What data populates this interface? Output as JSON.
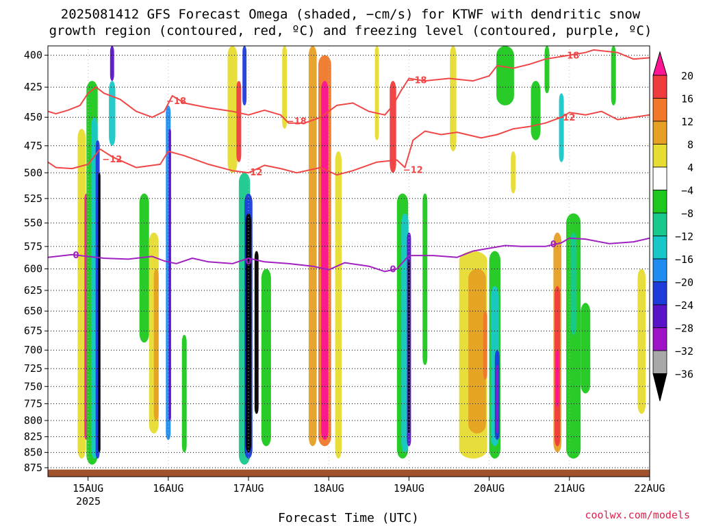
{
  "chart_data": {
    "type": "heatmap",
    "title_lines": [
      "2025081412 GFS Forecast Omega (shaded, −cm/s) for KTWF with dendritic snow",
      "growth region (contoured, red, ºC) and freezing level (contoured, purple, ºC)"
    ],
    "xlabel": "Forecast Time (UTC)",
    "credit": "coolwx.com/models",
    "x_ticks": [
      "15AUG",
      "16AUG",
      "17AUG",
      "18AUG",
      "19AUG",
      "20AUG",
      "21AUG",
      "22AUG"
    ],
    "x_year": "2025",
    "x_range_days": [
      14.5,
      22.0
    ],
    "y_ticks": [
      400,
      425,
      450,
      475,
      500,
      525,
      550,
      575,
      600,
      625,
      650,
      675,
      700,
      725,
      750,
      775,
      800,
      825,
      850,
      875
    ],
    "y_range_hpa": [
      393,
      890
    ],
    "y_scale": "log-pressure",
    "colorbar": {
      "labels": [
        "20",
        "16",
        "12",
        "8",
        "4",
        "−4",
        "−8",
        "−12",
        "−16",
        "−20",
        "−24",
        "−28",
        "−32",
        "−36"
      ],
      "colors": [
        "#ff1493",
        "#f03c3c",
        "#f07828",
        "#e6a024",
        "#e6dc32",
        "#ffffff",
        "#1ec81e",
        "#18c88c",
        "#18c8c8",
        "#1e8cf0",
        "#1e3cdc",
        "#5a14c8",
        "#a014c8",
        "#a8a8a8",
        "#000000"
      ]
    },
    "isotherms": [
      {
        "label": "−18",
        "color": "#f04646",
        "points": [
          [
            14.5,
            445
          ],
          [
            14.6,
            447
          ],
          [
            14.75,
            444
          ],
          [
            14.9,
            440
          ],
          [
            15.0,
            430
          ],
          [
            15.1,
            425
          ],
          [
            15.2,
            430
          ],
          [
            15.4,
            435
          ],
          [
            15.6,
            445
          ],
          [
            15.8,
            450
          ],
          [
            15.95,
            445
          ],
          [
            16.05,
            432
          ],
          [
            16.2,
            438
          ],
          [
            16.5,
            442
          ],
          [
            16.8,
            445
          ],
          [
            17.0,
            448
          ],
          [
            17.2,
            444
          ],
          [
            17.4,
            448
          ],
          [
            17.5,
            455
          ],
          [
            17.7,
            455
          ],
          [
            17.9,
            450
          ],
          [
            18.1,
            440
          ],
          [
            18.3,
            438
          ],
          [
            18.5,
            445
          ],
          [
            18.7,
            448
          ],
          [
            18.8,
            440
          ],
          [
            18.9,
            428
          ],
          [
            19.0,
            418
          ],
          [
            19.2,
            420
          ],
          [
            19.5,
            418
          ],
          [
            19.8,
            420
          ],
          [
            20.0,
            416
          ],
          [
            20.1,
            408
          ],
          [
            20.3,
            410
          ],
          [
            20.5,
            407
          ],
          [
            20.7,
            403
          ],
          [
            21.0,
            400
          ],
          [
            21.2,
            398
          ],
          [
            21.3,
            396
          ],
          [
            21.6,
            398
          ],
          [
            21.8,
            403
          ],
          [
            22.0,
            402
          ]
        ]
      },
      {
        "label": "−12",
        "color": "#f04646",
        "points": [
          [
            14.5,
            490
          ],
          [
            14.6,
            495
          ],
          [
            14.8,
            496
          ],
          [
            15.0,
            492
          ],
          [
            15.15,
            478
          ],
          [
            15.3,
            485
          ],
          [
            15.6,
            495
          ],
          [
            15.9,
            492
          ],
          [
            16.0,
            480
          ],
          [
            16.2,
            484
          ],
          [
            16.5,
            492
          ],
          [
            16.8,
            498
          ],
          [
            17.0,
            500
          ],
          [
            17.2,
            493
          ],
          [
            17.4,
            496
          ],
          [
            17.6,
            500
          ],
          [
            17.9,
            495
          ],
          [
            18.1,
            502
          ],
          [
            18.3,
            498
          ],
          [
            18.6,
            490
          ],
          [
            18.85,
            488
          ],
          [
            18.95,
            495
          ],
          [
            19.05,
            470
          ],
          [
            19.2,
            462
          ],
          [
            19.4,
            465
          ],
          [
            19.6,
            463
          ],
          [
            19.9,
            468
          ],
          [
            20.1,
            465
          ],
          [
            20.3,
            460
          ],
          [
            20.5,
            458
          ],
          [
            20.7,
            455
          ],
          [
            20.9,
            450
          ],
          [
            21.0,
            446
          ],
          [
            21.2,
            448
          ],
          [
            21.4,
            445
          ],
          [
            21.6,
            452
          ],
          [
            21.8,
            450
          ],
          [
            22.0,
            448
          ]
        ]
      },
      {
        "label": "0",
        "color": "#a020c0",
        "points": [
          [
            14.5,
            587
          ],
          [
            14.8,
            584
          ],
          [
            15.0,
            586
          ],
          [
            15.2,
            588
          ],
          [
            15.5,
            589
          ],
          [
            15.8,
            586
          ],
          [
            15.95,
            591
          ],
          [
            16.1,
            594
          ],
          [
            16.3,
            588
          ],
          [
            16.5,
            592
          ],
          [
            16.8,
            594
          ],
          [
            17.0,
            588
          ],
          [
            17.2,
            592
          ],
          [
            17.5,
            594
          ],
          [
            17.8,
            597
          ],
          [
            18.0,
            601
          ],
          [
            18.2,
            593
          ],
          [
            18.5,
            597
          ],
          [
            18.7,
            603
          ],
          [
            18.85,
            600
          ],
          [
            19.0,
            585
          ],
          [
            19.3,
            585
          ],
          [
            19.6,
            587
          ],
          [
            19.8,
            580
          ],
          [
            20.0,
            577
          ],
          [
            20.2,
            574
          ],
          [
            20.4,
            575
          ],
          [
            20.7,
            575
          ],
          [
            20.9,
            571
          ],
          [
            21.0,
            566
          ],
          [
            21.2,
            567
          ],
          [
            21.5,
            572
          ],
          [
            21.8,
            570
          ],
          [
            22.0,
            566
          ]
        ]
      }
    ],
    "contour_labels": [
      {
        "text": "−18",
        "x": 16.1,
        "p": 436
      },
      {
        "text": "−18",
        "x": 17.6,
        "p": 453
      },
      {
        "text": "−18",
        "x": 19.1,
        "p": 419
      },
      {
        "text": "−18",
        "x": 21.0,
        "p": 400
      },
      {
        "text": "−12",
        "x": 15.3,
        "p": 487
      },
      {
        "text": "−12",
        "x": 17.05,
        "p": 499
      },
      {
        "text": "−12",
        "x": 19.05,
        "p": 497
      },
      {
        "text": "−12",
        "x": 20.95,
        "p": 450
      },
      {
        "text": "0",
        "x": 14.85,
        "p": 584
      },
      {
        "text": "0",
        "x": 17.0,
        "p": 591
      },
      {
        "text": "0",
        "x": 18.8,
        "p": 600
      },
      {
        "text": "0",
        "x": 20.8,
        "p": 572
      }
    ],
    "omega_features": [
      {
        "x": 14.92,
        "w": 0.1,
        "p": [
          460,
          860
        ],
        "c": "#e6dc32"
      },
      {
        "x": 14.98,
        "w": 0.05,
        "p": [
          520,
          830
        ],
        "c": "#ff1493"
      },
      {
        "x": 15.05,
        "w": 0.14,
        "p": [
          420,
          870
        ],
        "c": "#1ec81e"
      },
      {
        "x": 15.08,
        "w": 0.08,
        "p": [
          450,
          860
        ],
        "c": "#18c8c8"
      },
      {
        "x": 15.12,
        "w": 0.05,
        "p": [
          470,
          860
        ],
        "c": "#1e3cdc"
      },
      {
        "x": 15.14,
        "w": 0.03,
        "p": [
          500,
          850
        ],
        "c": "#000000"
      },
      {
        "x": 15.3,
        "w": 0.05,
        "p": [
          393,
          420
        ],
        "c": "#5a14c8"
      },
      {
        "x": 15.3,
        "w": 0.08,
        "p": [
          420,
          475
        ],
        "c": "#18c8c8"
      },
      {
        "x": 15.7,
        "w": 0.12,
        "p": [
          520,
          690
        ],
        "c": "#1ec81e"
      },
      {
        "x": 15.82,
        "w": 0.12,
        "p": [
          560,
          820
        ],
        "c": "#e6dc32"
      },
      {
        "x": 15.85,
        "w": 0.06,
        "p": [
          600,
          800
        ],
        "c": "#e6a024"
      },
      {
        "x": 16.0,
        "w": 0.06,
        "p": [
          440,
          830
        ],
        "c": "#1e8cf0"
      },
      {
        "x": 16.02,
        "w": 0.03,
        "p": [
          460,
          800
        ],
        "c": "#5a14c8"
      },
      {
        "x": 16.2,
        "w": 0.06,
        "p": [
          680,
          850
        ],
        "c": "#1ec81e"
      },
      {
        "x": 16.8,
        "w": 0.12,
        "p": [
          393,
          500
        ],
        "c": "#e6dc32"
      },
      {
        "x": 16.88,
        "w": 0.06,
        "p": [
          420,
          490
        ],
        "c": "#f03c3c"
      },
      {
        "x": 16.95,
        "w": 0.05,
        "p": [
          393,
          440
        ],
        "c": "#1e3cdc"
      },
      {
        "x": 16.95,
        "w": 0.14,
        "p": [
          500,
          870
        ],
        "c": "#18c88c"
      },
      {
        "x": 17.0,
        "w": 0.1,
        "p": [
          520,
          860
        ],
        "c": "#1e3cdc"
      },
      {
        "x": 17.0,
        "w": 0.07,
        "p": [
          540,
          850
        ],
        "c": "#000000"
      },
      {
        "x": 17.1,
        "w": 0.05,
        "p": [
          580,
          790
        ],
        "c": "#000000"
      },
      {
        "x": 17.22,
        "w": 0.12,
        "p": [
          600,
          840
        ],
        "c": "#1ec81e"
      },
      {
        "x": 17.45,
        "w": 0.06,
        "p": [
          393,
          460
        ],
        "c": "#e6dc32"
      },
      {
        "x": 17.8,
        "w": 0.1,
        "p": [
          393,
          840
        ],
        "c": "#e6a024"
      },
      {
        "x": 17.95,
        "w": 0.16,
        "p": [
          400,
          840
        ],
        "c": "#f07828"
      },
      {
        "x": 17.95,
        "w": 0.09,
        "p": [
          420,
          830
        ],
        "c": "#ff1493"
      },
      {
        "x": 18.12,
        "w": 0.08,
        "p": [
          480,
          860
        ],
        "c": "#e6dc32"
      },
      {
        "x": 18.6,
        "w": 0.05,
        "p": [
          393,
          470
        ],
        "c": "#e6dc32"
      },
      {
        "x": 18.8,
        "w": 0.08,
        "p": [
          420,
          500
        ],
        "c": "#f03c3c"
      },
      {
        "x": 18.92,
        "w": 0.14,
        "p": [
          520,
          860
        ],
        "c": "#1ec81e"
      },
      {
        "x": 18.95,
        "w": 0.09,
        "p": [
          540,
          850
        ],
        "c": "#18c8c8"
      },
      {
        "x": 19.0,
        "w": 0.05,
        "p": [
          560,
          840
        ],
        "c": "#5a14c8"
      },
      {
        "x": 19.0,
        "w": 0.02,
        "p": [
          590,
          820
        ],
        "c": "#000000"
      },
      {
        "x": 19.2,
        "w": 0.06,
        "p": [
          520,
          720
        ],
        "c": "#1ec81e"
      },
      {
        "x": 19.55,
        "w": 0.08,
        "p": [
          393,
          480
        ],
        "c": "#e6dc32"
      },
      {
        "x": 19.8,
        "w": 0.35,
        "p": [
          580,
          860
        ],
        "c": "#e6dc32"
      },
      {
        "x": 19.85,
        "w": 0.22,
        "p": [
          600,
          820
        ],
        "c": "#e6a024"
      },
      {
        "x": 19.95,
        "w": 0.05,
        "p": [
          650,
          740
        ],
        "c": "#f07828"
      },
      {
        "x": 20.07,
        "w": 0.14,
        "p": [
          580,
          860
        ],
        "c": "#1ec81e"
      },
      {
        "x": 20.07,
        "w": 0.1,
        "p": [
          620,
          840
        ],
        "c": "#18c8c8"
      },
      {
        "x": 20.1,
        "w": 0.06,
        "p": [
          700,
          830
        ],
        "c": "#1e3cdc"
      },
      {
        "x": 20.1,
        "w": 0.03,
        "p": [
          720,
          820
        ],
        "c": "#a014c8"
      },
      {
        "x": 20.2,
        "w": 0.22,
        "p": [
          393,
          440
        ],
        "c": "#1ec81e"
      },
      {
        "x": 20.3,
        "w": 0.06,
        "p": [
          480,
          520
        ],
        "c": "#e6dc32"
      },
      {
        "x": 20.58,
        "w": 0.12,
        "p": [
          420,
          470
        ],
        "c": "#1ec81e"
      },
      {
        "x": 20.72,
        "w": 0.06,
        "p": [
          393,
          430
        ],
        "c": "#1ec81e"
      },
      {
        "x": 20.85,
        "w": 0.1,
        "p": [
          560,
          850
        ],
        "c": "#e6a024"
      },
      {
        "x": 20.85,
        "w": 0.07,
        "p": [
          620,
          840
        ],
        "c": "#f03c3c"
      },
      {
        "x": 20.85,
        "w": 0.04,
        "p": [
          700,
          780
        ],
        "c": "#ff1493"
      },
      {
        "x": 20.9,
        "w": 0.06,
        "p": [
          430,
          490
        ],
        "c": "#18c8c8"
      },
      {
        "x": 21.05,
        "w": 0.18,
        "p": [
          540,
          860
        ],
        "c": "#1ec81e"
      },
      {
        "x": 21.05,
        "w": 0.08,
        "p": [
          560,
          680
        ],
        "c": "#18c88c"
      },
      {
        "x": 21.2,
        "w": 0.12,
        "p": [
          640,
          760
        ],
        "c": "#1ec81e"
      },
      {
        "x": 21.55,
        "w": 0.06,
        "p": [
          393,
          440
        ],
        "c": "#1ec81e"
      },
      {
        "x": 21.9,
        "w": 0.1,
        "p": [
          600,
          790
        ],
        "c": "#e6dc32"
      }
    ],
    "terrain": {
      "color": "#a0522d",
      "p_top": 878
    }
  }
}
